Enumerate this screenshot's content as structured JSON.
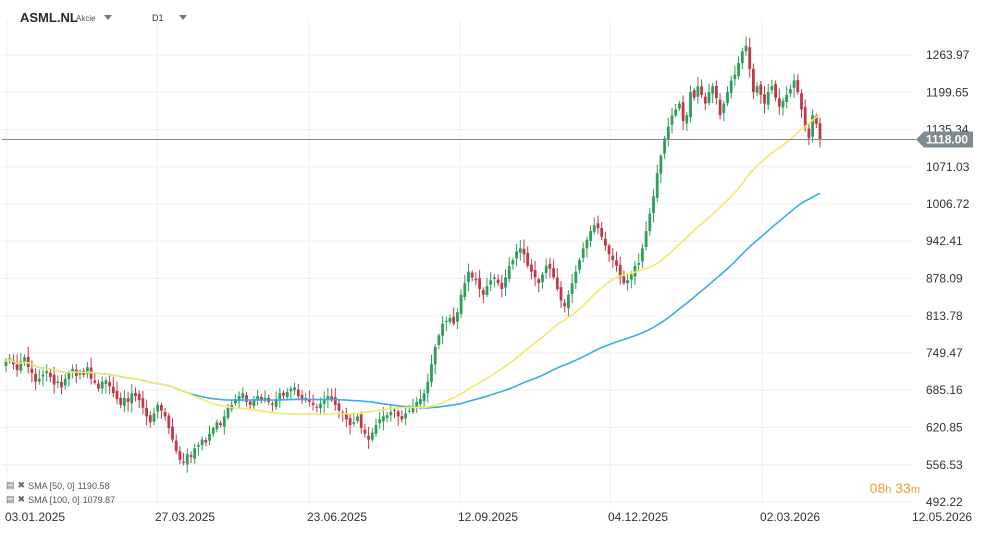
{
  "header": {
    "symbol": "ASML.NL",
    "instrument_type": "Akcie",
    "timeframe": "D1"
  },
  "indicators": [
    {
      "label": "SMA [50, 0]",
      "value": "1190.58",
      "color": "#f5e867"
    },
    {
      "label": "SMA [100, 0]",
      "value": "1079.87",
      "color": "#3aaee0"
    }
  ],
  "timer": {
    "hours": "08",
    "h_unit": "h",
    "minutes": "33",
    "m_unit": "m"
  },
  "current_price_label": "1118.00",
  "chart_data": {
    "type": "candlestick",
    "title": "ASML.NL",
    "y_ticks": [
      "1263.97",
      "1199.65",
      "1135.34",
      "1071.03",
      "1006.72",
      "942.41",
      "878.09",
      "813.78",
      "749.47",
      "685.16",
      "620.85",
      "556.53",
      "492.22"
    ],
    "x_ticks": [
      "03.01.2025",
      "27.03.2025",
      "23.06.2025",
      "12.09.2025",
      "04.12.2025",
      "02.03.2026",
      "12.05.2026"
    ],
    "ylim": [
      492.22,
      1328.28
    ],
    "current_price": 1118.0,
    "closes": [
      735,
      740,
      730,
      720,
      735,
      742,
      725,
      715,
      700,
      705,
      712,
      718,
      708,
      695,
      700,
      690,
      705,
      715,
      722,
      710,
      718,
      712,
      725,
      705,
      698,
      688,
      700,
      702,
      692,
      680,
      670,
      660,
      672,
      665,
      680,
      675,
      668,
      655,
      640,
      630,
      645,
      660,
      650,
      640,
      620,
      600,
      580,
      565,
      560,
      575,
      570,
      585,
      590,
      600,
      595,
      610,
      620,
      630,
      625,
      640,
      655,
      660,
      670,
      675,
      680,
      665,
      660,
      670,
      675,
      668,
      672,
      665,
      660,
      670,
      680,
      676,
      682,
      688,
      690,
      675,
      668,
      672,
      665,
      660,
      655,
      662,
      670,
      675,
      670,
      660,
      650,
      645,
      635,
      625,
      630,
      640,
      620,
      610,
      600,
      612,
      625,
      635,
      640,
      642,
      648,
      650,
      640,
      635,
      645,
      650,
      655,
      665,
      670,
      680,
      700,
      730,
      760,
      780,
      800,
      805,
      810,
      800,
      820,
      850,
      870,
      890,
      880,
      875,
      860,
      850,
      865,
      875,
      880,
      870,
      860,
      880,
      900,
      910,
      925,
      930,
      920,
      900,
      890,
      880,
      870,
      885,
      900,
      895,
      880,
      860,
      840,
      830,
      850,
      870,
      890,
      910,
      930,
      945,
      960,
      970,
      965,
      950,
      935,
      920,
      910,
      900,
      880,
      870,
      875,
      885,
      900,
      905,
      930,
      960,
      990,
      1020,
      1060,
      1090,
      1120,
      1140,
      1160,
      1170,
      1180,
      1150,
      1160,
      1200,
      1190,
      1210,
      1195,
      1180,
      1200,
      1210,
      1190,
      1160,
      1180,
      1200,
      1220,
      1230,
      1250,
      1270,
      1280,
      1240,
      1200,
      1210,
      1195,
      1180,
      1200,
      1210,
      1190,
      1175,
      1185,
      1195,
      1205,
      1220,
      1200,
      1170,
      1140,
      1120,
      1160,
      1145,
      1118
    ],
    "sma50": {
      "label": "SMA [50, 0]",
      "last": 1190.58
    },
    "sma100": {
      "label": "SMA [100, 0]",
      "last": 1079.87
    }
  }
}
